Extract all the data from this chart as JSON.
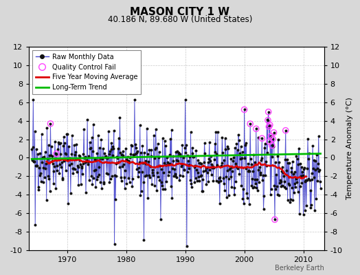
{
  "title": "MASON CITY 1 W",
  "subtitle": "40.186 N, 89.680 W (United States)",
  "ylabel": "Temperature Anomaly (°C)",
  "watermark": "Berkeley Earth",
  "xlim": [
    1963.5,
    2013.5
  ],
  "ylim": [
    -10,
    12
  ],
  "yticks": [
    -10,
    -8,
    -6,
    -4,
    -2,
    0,
    2,
    4,
    6,
    8,
    10,
    12
  ],
  "xticks": [
    1970,
    1980,
    1990,
    2000,
    2010
  ],
  "bg_color": "#d8d8d8",
  "plot_bg": "#ffffff",
  "grid_color": "#bbbbbb",
  "raw_line_color": "#4444cc",
  "raw_dot_color": "#111111",
  "moving_avg_color": "#dd0000",
  "trend_color": "#00bb00",
  "qc_fail_color": "#ff44ff",
  "seed": 42,
  "n_months": 588,
  "start_year": 1964.0,
  "trend_slope": 0.0,
  "title_fontsize": 11,
  "subtitle_fontsize": 8.5,
  "tick_fontsize": 8,
  "ylabel_fontsize": 8,
  "legend_fontsize": 7,
  "watermark_fontsize": 7
}
